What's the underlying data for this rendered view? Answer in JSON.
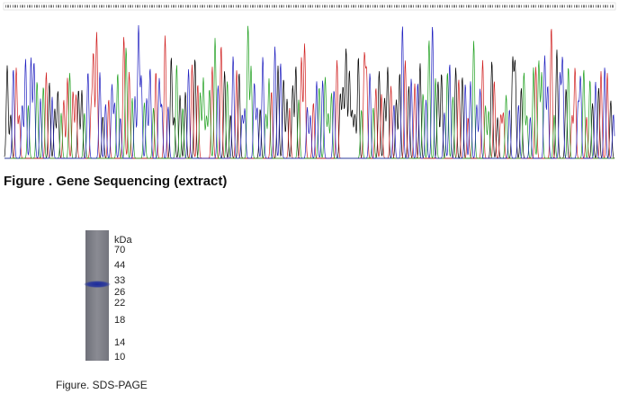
{
  "figure1": {
    "caption": "Figure . Gene Sequencing (extract)"
  },
  "figure2": {
    "unit": "kDa",
    "markers": [
      70,
      44,
      33,
      26,
      22,
      18,
      14,
      10
    ],
    "caption": "Figure. SDS-PAGE"
  }
}
